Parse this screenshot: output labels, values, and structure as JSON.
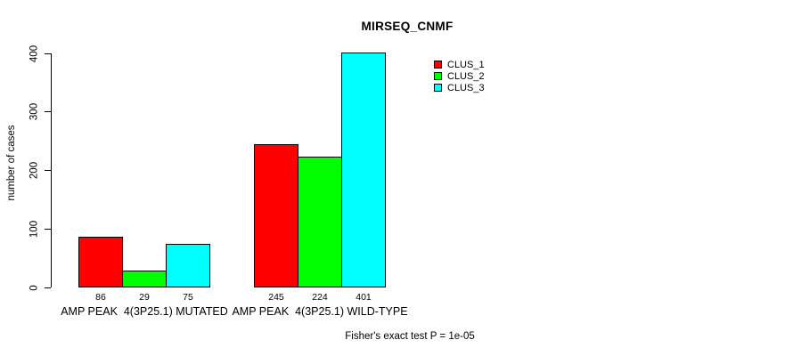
{
  "chart_data": {
    "type": "bar",
    "title": "MIRSEQ_CNMF",
    "ylabel": "number of cases",
    "xlabel": "",
    "categories": [
      "AMP PEAK  4(3P25.1) MUTATED",
      "AMP PEAK  4(3P25.1) WILD-TYPE"
    ],
    "series": [
      {
        "name": "CLUS_1",
        "color": "#FF0000",
        "values": [
          86,
          245
        ]
      },
      {
        "name": "CLUS_2",
        "color": "#00FF00",
        "values": [
          29,
          224
        ]
      },
      {
        "name": "CLUS_3",
        "color": "#00FFFF",
        "values": [
          75,
          401
        ]
      }
    ],
    "yticks": [
      0,
      100,
      200,
      300,
      400
    ],
    "ylim": [
      0,
      400
    ],
    "grid": false,
    "bar_borders": "#000000",
    "bar_value_labels_shown": true,
    "legend_position": "top-right",
    "annotation": "Fisher's exact test P = 1e-05",
    "background_color": "#FFFFFF",
    "axis_color": "#000000"
  }
}
